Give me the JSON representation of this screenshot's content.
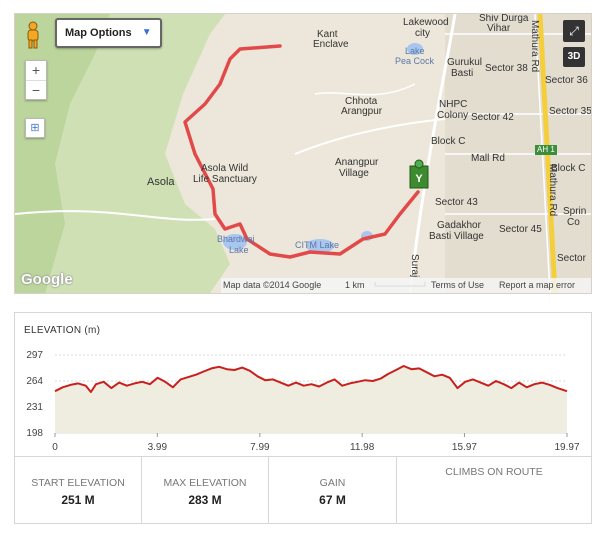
{
  "map": {
    "options_label": "Map Options",
    "zoom_in": "+",
    "zoom_out": "−",
    "btn_3d": "3D",
    "google_logo": "Google",
    "labels": {
      "lakewood": "Lakewood",
      "city": "city",
      "shiv_durga": "Shiv Durga",
      "vihar": "Vihar",
      "kant": "Kant",
      "enclave": "Enclave",
      "lake_pea": "Lake",
      "pea_cock": "Pea Cock",
      "gurukul": "Gurukul",
      "basti": "Basti",
      "sector38": "Sector 38",
      "sector36": "Sector 36",
      "sector35": "Sector 35",
      "sector42": "Sector 42",
      "nhpc": "NHPC",
      "colony": "Colony",
      "chhota": "Chhota",
      "arangpur": "Arangpur",
      "blockc": "Block C",
      "mallrd": "Mall Rd",
      "blockc2": "Block C",
      "ah1": "AH 1",
      "asola": "Asola",
      "asola_wild": "Asola Wild",
      "life_sanctuary": "Life Sanctuary",
      "anangpur": "Anangpur",
      "village": "Village",
      "sector43": "Sector 43",
      "spring": "Sprin",
      "co": "Co",
      "gadakhor": "Gadakhor",
      "basti_village": "Basti Village",
      "bhardwaj": "Bhardwaj",
      "lake": "Lake",
      "citm": "CITM Lake",
      "sector45": "Sector 45",
      "sector_r": "Sector",
      "mathura_rd": "Mathura Rd",
      "mathura_rd2": "Mathura Rd",
      "surajkund": "Suraj"
    },
    "footer": {
      "data": "Map data ©2014 Google",
      "scale": "1 km",
      "terms": "Terms of Use",
      "report": "Report a map error"
    }
  },
  "elevation": {
    "title": "ELEVATION (m)",
    "stats": {
      "start_label": "START ELEVATION",
      "start_value": "251 M",
      "max_label": "MAX ELEVATION",
      "max_value": "283 M",
      "gain_label": "GAIN",
      "gain_value": "67 M",
      "climbs_label": "CLIMBS ON ROUTE"
    }
  },
  "chart_data": {
    "type": "area",
    "xlabel": "",
    "ylabel": "ELEVATION (m)",
    "xlim": [
      0,
      19.97
    ],
    "ylim": [
      198,
      297
    ],
    "y_ticks": [
      "297",
      "264",
      "231",
      "198"
    ],
    "x_ticks": [
      "0",
      "3.99",
      "7.99",
      "11.98",
      "15.97",
      "19.97"
    ],
    "x_tick_values": [
      0,
      3.99,
      7.99,
      11.98,
      15.97,
      19.97
    ],
    "y_tick_values": [
      297,
      264,
      231,
      198
    ],
    "series": [
      {
        "color": "#c8201d",
        "x": [
          0,
          0.3,
          0.6,
          0.9,
          1.2,
          1.4,
          1.6,
          1.9,
          2.2,
          2.5,
          2.8,
          3.1,
          3.4,
          3.7,
          4.0,
          4.3,
          4.6,
          4.9,
          5.2,
          5.5,
          5.8,
          6.1,
          6.4,
          6.7,
          7.0,
          7.3,
          7.6,
          7.9,
          8.2,
          8.5,
          8.8,
          9.1,
          9.4,
          9.7,
          10.0,
          10.3,
          10.6,
          10.9,
          11.2,
          11.5,
          11.8,
          12.1,
          12.4,
          12.7,
          13.0,
          13.3,
          13.6,
          13.9,
          14.2,
          14.5,
          14.8,
          15.1,
          15.4,
          15.7,
          16.0,
          16.3,
          16.6,
          16.9,
          17.2,
          17.5,
          17.8,
          18.1,
          18.4,
          18.7,
          19.0,
          19.3,
          19.6,
          19.97
        ],
        "values": [
          251,
          256,
          259,
          261,
          258,
          250,
          260,
          263,
          255,
          262,
          258,
          261,
          263,
          260,
          268,
          263,
          256,
          266,
          269,
          272,
          276,
          280,
          282,
          279,
          278,
          281,
          277,
          270,
          265,
          266,
          262,
          258,
          262,
          258,
          260,
          257,
          262,
          266,
          258,
          261,
          263,
          265,
          264,
          267,
          273,
          278,
          283,
          279,
          280,
          275,
          270,
          272,
          268,
          255,
          263,
          266,
          262,
          258,
          264,
          260,
          255,
          262,
          256,
          260,
          262,
          259,
          255,
          251
        ]
      }
    ]
  }
}
